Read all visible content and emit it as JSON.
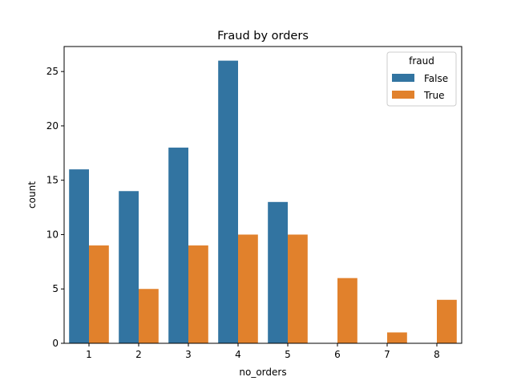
{
  "chart_data": {
    "type": "bar",
    "title": "Fraud by orders",
    "xlabel": "no_orders",
    "ylabel": "count",
    "categories": [
      "1",
      "2",
      "3",
      "4",
      "5",
      "6",
      "7",
      "8"
    ],
    "series": [
      {
        "name": "False",
        "color": "#3274a1",
        "values": [
          16,
          14,
          18,
          26,
          13,
          null,
          null,
          null
        ]
      },
      {
        "name": "True",
        "color": "#e1812c",
        "values": [
          9,
          5,
          9,
          10,
          10,
          6,
          1,
          4
        ]
      }
    ],
    "ylim": [
      0,
      27.3
    ],
    "yticks": [
      0,
      5,
      10,
      15,
      20,
      25
    ],
    "legend": {
      "title": "fraud",
      "placement": "top-right"
    },
    "grid": false
  }
}
